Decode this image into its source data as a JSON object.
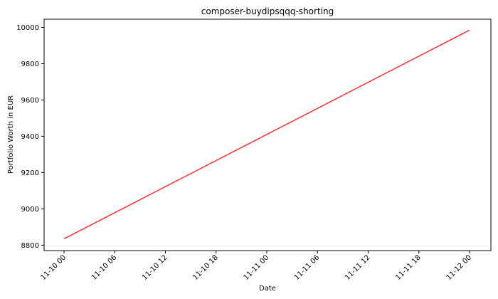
{
  "chart_data": {
    "type": "line",
    "title": "composer-buydipsqqq-shorting",
    "xlabel": "Date",
    "ylabel": "Portfolio Worth in EUR",
    "x_ticks": [
      "11-10 00",
      "11-10 06",
      "11-10 12",
      "11-10 18",
      "11-11 00",
      "11-11 06",
      "11-11 12",
      "11-11 18",
      "11-12 00"
    ],
    "y_ticks": [
      8800,
      9000,
      9200,
      9400,
      9600,
      9800,
      10000
    ],
    "ylim": [
      8770,
      10045
    ],
    "grid": false,
    "series": [
      {
        "color": "#ff3333",
        "x": [
          "11-10 00",
          "11-12 00"
        ],
        "values": [
          8835,
          9985
        ]
      }
    ]
  }
}
